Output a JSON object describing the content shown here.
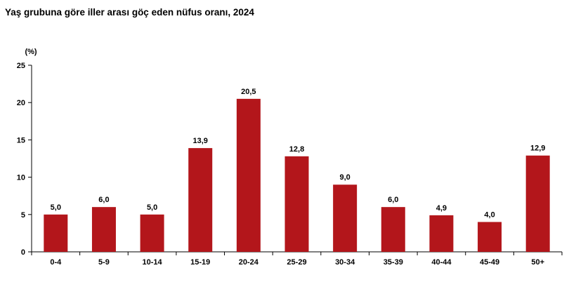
{
  "chart_data": {
    "type": "bar",
    "title": "Yaş grubuna göre iller arası göç eden nüfus oranı, 2024",
    "ylabel": "(%)",
    "xlabel": "",
    "ylim": [
      0,
      25
    ],
    "yticks": [
      "0",
      "5",
      "10",
      "15",
      "20",
      "25"
    ],
    "categories": [
      "0-4",
      "5-9",
      "10-14",
      "15-19",
      "20-24",
      "25-29",
      "30-34",
      "35-39",
      "40-44",
      "45-49",
      "50+"
    ],
    "values": [
      5.0,
      6.0,
      5.0,
      13.9,
      20.5,
      12.8,
      9.0,
      6.0,
      4.9,
      4.0,
      12.9
    ],
    "value_labels": [
      "5,0",
      "6,0",
      "5,0",
      "13,9",
      "20,5",
      "12,8",
      "9,0",
      "6,0",
      "4,9",
      "4,0",
      "12,9"
    ],
    "bar_color": "#b3161b",
    "grid": false,
    "legend": "none"
  }
}
